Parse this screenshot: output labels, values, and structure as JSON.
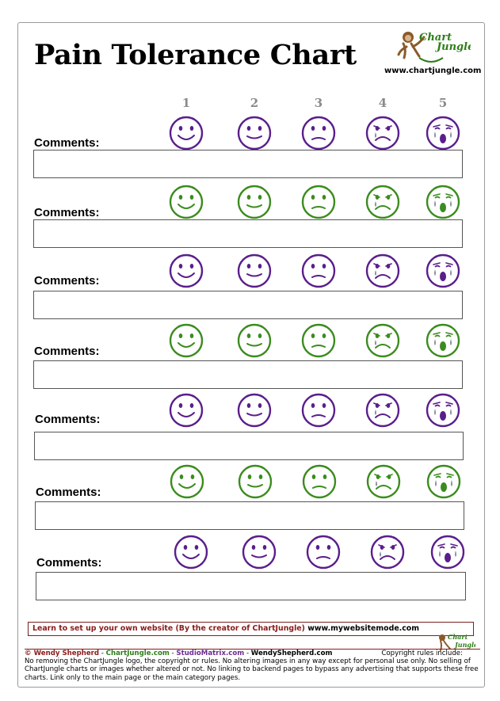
{
  "title": "Pain Tolerance Chart",
  "logo": {
    "word1": "Chart",
    "word2": "Jungle",
    "icon": "monkey-logo"
  },
  "site_url": "www.chartjungle.com",
  "scale": [
    "1",
    "2",
    "3",
    "4",
    "5"
  ],
  "rows": [
    {
      "label": "Comments:",
      "color": "#5a1e8c"
    },
    {
      "label": "Comments:",
      "color": "#3b8c1e"
    },
    {
      "label": "Comments:",
      "color": "#5a1e8c"
    },
    {
      "label": "Comments:",
      "color": "#3b8c1e"
    },
    {
      "label": "Comments:",
      "color": "#5a1e8c"
    },
    {
      "label": "Comments:",
      "color": "#3b8c1e"
    },
    {
      "label": "Comments:",
      "color": "#5a1e8c"
    }
  ],
  "faces": [
    "smile-face-icon",
    "content-face-icon",
    "neutral-face-icon",
    "sad-tear-face-icon",
    "crying-face-icon"
  ],
  "promo": {
    "text": "Learn to set up your own website (By the creator of ChartJungle)",
    "url": "www.mywebsitemode.com"
  },
  "footer": {
    "copyright": "© Wendy Shepherd",
    "sep1": " - ",
    "link1": "ChartJungle.com",
    "sep2": " - ",
    "link2": "StudioMatrix.com",
    "sep3": " - ",
    "link3": "WendyShepherd.com",
    "rules_intro": "Copyright rules include:",
    "rules": "No removing the ChartJungle logo, the copyright or rules. No altering images in any way except for personal use only. No selling of ChartJungle charts or images whether altered or not. No linking to backend pages to bypass any advertising that supports these free charts. Link only to the main page or the main category pages."
  },
  "colors": {
    "purple": "#5a1e8c",
    "green": "#3b8c1e",
    "tear": "#8a8aa0",
    "brand_red": "#8b1a1a"
  }
}
